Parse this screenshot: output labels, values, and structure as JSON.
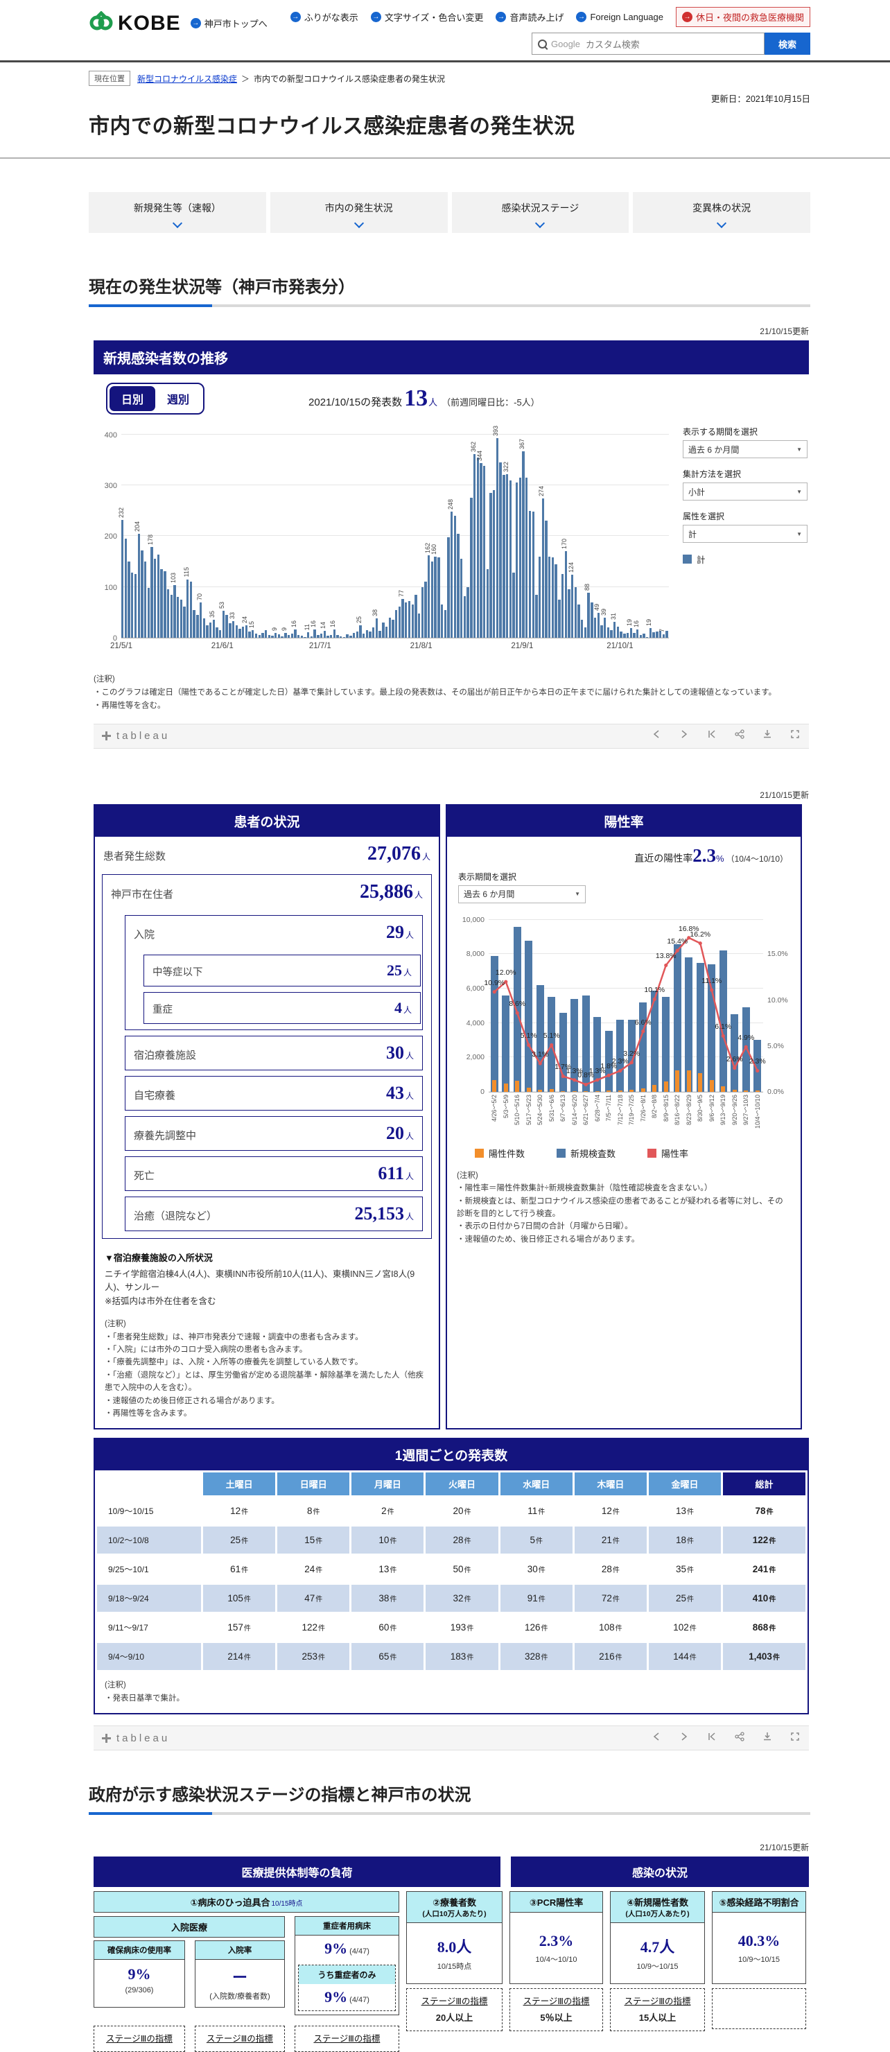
{
  "header": {
    "logo_text": "KOBE",
    "home_link": "神戸市トップへ",
    "nav": [
      "ふりがな表示",
      "文字サイズ・色合い変更",
      "音声読み上げ",
      "Foreign Language"
    ],
    "emergency": "休日・夜間の救急医療機関",
    "search": {
      "engine": "Google",
      "placeholder": "カスタム検索",
      "button": "検索"
    }
  },
  "breadcrumb": {
    "tag": "現在位置",
    "link": "新型コロナウイルス感染症",
    "sep": "＞",
    "current": "市内での新型コロナウイルス感染症患者の発生状況",
    "updated": "更新日：2021年10月15日"
  },
  "page_title": "市内での新型コロナウイルス感染症患者の発生状況",
  "tabs": [
    "新規発生等（速報）",
    "市内の発生状況",
    "感染状況ステージ",
    "変異株の状況"
  ],
  "section1_heading": "現在の発生状況等（神戸市発表分）",
  "dash1": {
    "updated": "21/10/15更新",
    "banner": "新規感染者数の推移",
    "toggle_daily": "日別",
    "toggle_weekly": "週別",
    "announce_prefix": "2021/10/15の発表数",
    "announce_value": "13",
    "announce_unit": "人",
    "announce_diff": "（前週同曜日比：-5人）",
    "controls": [
      {
        "label": "表示する期間を選択",
        "value": "過去 6 か月間"
      },
      {
        "label": "集計方法を選択",
        "value": "小計"
      },
      {
        "label": "属性を選択",
        "value": "計"
      }
    ],
    "legend": "計",
    "note_label": "(注釈)",
    "notes": [
      "・このグラフは確定日（陽性であることが確定した日）基準で集計しています。最上段の発表数は、その届出が前日正午から本日の正午までに届けられた集計としての速報値となっています。",
      "・再陽性等を含む。"
    ]
  },
  "patient": {
    "updated": "21/10/15更新",
    "header": "患者の状況",
    "total": {
      "label": "患者発生総数",
      "value": "27,076",
      "unit": "人"
    },
    "resident": {
      "label": "神戸市在住者",
      "value": "25,886",
      "unit": "人"
    },
    "hospital": {
      "label": "入院",
      "value": "29",
      "unit": "人"
    },
    "moderate": {
      "label": "中等症以下",
      "value": "25",
      "unit": "人"
    },
    "severe": {
      "label": "重症",
      "value": "4",
      "unit": "人"
    },
    "lodging": {
      "label": "宿泊療養施設",
      "value": "30",
      "unit": "人"
    },
    "home": {
      "label": "自宅療養",
      "value": "43",
      "unit": "人"
    },
    "adjusting": {
      "label": "療養先調整中",
      "value": "20",
      "unit": "人"
    },
    "death": {
      "label": "死亡",
      "value": "611",
      "unit": "人"
    },
    "recovered": {
      "label": "治癒（退院など）",
      "value": "25,153",
      "unit": "人"
    },
    "facility_title": "▼宿泊療養施設の入所状況",
    "facility_line1": "ニチイ学館宿泊棟4人(4人)、東横INN市役所前10人(11人)、東横INN三ノ宮Ⅰ8人(9人)、サンルー",
    "facility_line2": "※括弧内は市外在住者を含む",
    "note_label": "(注釈)",
    "notes": [
      "・「患者発生総数」は、神戸市発表分で速報・調査中の患者も含みます。",
      "・「入院」には市外のコロナ受入病院の患者も含みます。",
      "・「療養先調整中」は、入院・入所等の療養先を調整している人数です。",
      "・「治癒（退院など）」とは、厚生労働省が定める退院基準・解除基準を満たした人（他疾患で入院中の人を含む）。",
      "・速報値のため後日修正される場合があります。",
      "・再陽性等を含みます。"
    ]
  },
  "rate": {
    "header": "陽性率",
    "recent_prefix": "直近の陽性率",
    "recent_value": "2.3",
    "recent_unit": "%",
    "recent_period": "（10/4～10/10）",
    "control_label": "表示期間を選択",
    "control_value": "過去 6 か月間",
    "legend_positive": "陽性件数",
    "legend_tests": "新規検査数",
    "legend_rate": "陽性率",
    "note_label": "(注釈)",
    "notes": [
      "・陽性率＝陽性件数集計÷新規検査数集計（陰性確認検査を含まない。）",
      "・新規検査とは、新型コロナウイルス感染症の患者であることが疑われる者等に対し、その診断を目的として行う検査。",
      "・表示の日付から7日間の合計（月曜から日曜）。",
      "・速報値のため、後日修正される場合があります。"
    ]
  },
  "weekly_table": {
    "title": "1週間ごとの発表数",
    "col_headers": [
      "土曜日",
      "日曜日",
      "月曜日",
      "火曜日",
      "水曜日",
      "木曜日",
      "金曜日",
      "総計"
    ],
    "unit": "件",
    "rows": [
      {
        "label": "10/9～10/15",
        "cells": [
          "12",
          "8",
          "2",
          "20",
          "11",
          "12",
          "13"
        ],
        "total": "78"
      },
      {
        "label": "10/2～10/8",
        "cells": [
          "25",
          "15",
          "10",
          "28",
          "5",
          "21",
          "18"
        ],
        "total": "122"
      },
      {
        "label": "9/25～10/1",
        "cells": [
          "61",
          "24",
          "13",
          "50",
          "30",
          "28",
          "35"
        ],
        "total": "241"
      },
      {
        "label": "9/18～9/24",
        "cells": [
          "105",
          "47",
          "38",
          "32",
          "91",
          "72",
          "25"
        ],
        "total": "410"
      },
      {
        "label": "9/11～9/17",
        "cells": [
          "157",
          "122",
          "60",
          "193",
          "126",
          "108",
          "102"
        ],
        "total": "868"
      },
      {
        "label": "9/4～9/10",
        "cells": [
          "214",
          "253",
          "65",
          "183",
          "328",
          "216",
          "144"
        ],
        "total": "1,403"
      }
    ],
    "note_label": "(注釈)",
    "note": "・発表日基準で集計。"
  },
  "section2_heading": "政府が示す感染状況ステージの指標と神戸市の状況",
  "stage": {
    "updated": "21/10/15更新",
    "banner_left": "医療提供体制等の負荷",
    "banner_right": "感染の状況",
    "col1": {
      "title": "①病床のひっ迫具合",
      "asof": "10/15時点",
      "nyuin": "入院医療",
      "a": {
        "label": "確保病床の使用率",
        "value": "9%",
        "detail": "(29/306)",
        "stage": "ステージⅢの指標"
      },
      "b": {
        "label": "入院率",
        "value": "ー",
        "detail": "(入院数/療養者数)",
        "stage": "ステージⅢの指標"
      },
      "c": {
        "label": "重症者用病床",
        "value": "9%",
        "detail": "(4/47)",
        "sub": "うち重症者のみ",
        "sub_value": "9%",
        "sub_detail": "(4/47)",
        "stage": "ステージⅢの指標"
      }
    },
    "col2": {
      "title": "②療養者数",
      "sub": "(人口10万人あたり)",
      "value": "8.0人",
      "period": "10/15時点",
      "stage": "ステージⅢの指標",
      "threshold": "20人以上"
    },
    "col3": {
      "title": "③PCR陽性率",
      "value": "2.3%",
      "period": "10/4～10/10",
      "stage": "ステージⅢの指標",
      "threshold": "5％以上"
    },
    "col4": {
      "title": "④新規陽性者数",
      "sub": "(人口10万人あたり)",
      "value": "4.7人",
      "period": "10/9～10/15",
      "stage": "ステージⅢの指標",
      "threshold": "15人以上"
    },
    "col5": {
      "title": "⑤感染経路不明割合",
      "value": "40.3%",
      "period": "10/9～10/15"
    }
  },
  "toolbar": {
    "brand": "tableau"
  },
  "chart_data": [
    {
      "type": "bar",
      "title": "新規感染者数の推移（日別）",
      "ylabel": "新規感染者数",
      "ylim": [
        0,
        420
      ],
      "yticks": [
        0,
        100,
        200,
        300,
        400
      ],
      "series_name": "計",
      "bar_color": "#4e79a7",
      "x_start": "2021/5/1",
      "x_end": "2021/10/15",
      "month_ticks": [
        {
          "index": 0,
          "label": "21/5/1"
        },
        {
          "index": 31,
          "label": "21/6/1"
        },
        {
          "index": 61,
          "label": "21/7/1"
        },
        {
          "index": 92,
          "label": "21/8/1"
        },
        {
          "index": 123,
          "label": "21/9/1"
        },
        {
          "index": 153,
          "label": "21/10/1"
        }
      ],
      "values": [
        232,
        195,
        150,
        128,
        125,
        204,
        172,
        150,
        98,
        178,
        155,
        163,
        135,
        131,
        95,
        85,
        103,
        80,
        75,
        62,
        115,
        110,
        55,
        45,
        70,
        38,
        25,
        30,
        35,
        20,
        15,
        53,
        45,
        28,
        33,
        25,
        18,
        22,
        24,
        12,
        15,
        8,
        5,
        10,
        15,
        6,
        4,
        9,
        7,
        3,
        9,
        5,
        8,
        16,
        6,
        4,
        2,
        11,
        3,
        16,
        5,
        8,
        14,
        4,
        6,
        16,
        5,
        3,
        2,
        7,
        4,
        10,
        12,
        25,
        8,
        15,
        12,
        20,
        38,
        14,
        30,
        22,
        40,
        35,
        55,
        62,
        77,
        70,
        72,
        65,
        85,
        48,
        100,
        110,
        162,
        150,
        160,
        158,
        65,
        55,
        198,
        248,
        240,
        205,
        155,
        82,
        100,
        275,
        362,
        355,
        344,
        338,
        135,
        285,
        290,
        393,
        345,
        320,
        322,
        310,
        128,
        305,
        315,
        367,
        315,
        250,
        248,
        85,
        160,
        274,
        230,
        160,
        158,
        145,
        75,
        125,
        170,
        95,
        124,
        100,
        65,
        35,
        20,
        88,
        70,
        40,
        49,
        25,
        39,
        20,
        15,
        31,
        22,
        12,
        8,
        10,
        19,
        9,
        16,
        5,
        8,
        2,
        19,
        11,
        12,
        13,
        7,
        13
      ],
      "label_indices": [
        0,
        5,
        9,
        16,
        20,
        24,
        28,
        31,
        34,
        38,
        40,
        47,
        50,
        53,
        57,
        59,
        62,
        65,
        73,
        78,
        86,
        94,
        96,
        101,
        108,
        110,
        115,
        118,
        123,
        129,
        136,
        138,
        143,
        146,
        148,
        151,
        156,
        158,
        162,
        166
      ]
    },
    {
      "type": "bar+line",
      "title": "陽性率（週別）",
      "categories": [
        "4/26～5/2",
        "5/3～5/9",
        "5/10～5/16",
        "5/17～5/23",
        "5/24～5/30",
        "5/31～6/6",
        "6/7～6/13",
        "6/14～6/20",
        "6/21～6/27",
        "6/28～7/4",
        "7/5～7/11",
        "7/12～7/18",
        "7/19～7/25",
        "7/26～8/1",
        "8/2～8/8",
        "8/9～8/15",
        "8/16～8/22",
        "8/23～8/29",
        "8/30～9/5",
        "9/6～9/12",
        "9/13～9/19",
        "9/20～9/26",
        "9/27～10/3",
        "10/4～10/10"
      ],
      "series": [
        {
          "name": "陽性件数",
          "color": "#f28e2b",
          "values": [
            700,
            500,
            650,
            250,
            120,
            150,
            50,
            40,
            30,
            50,
            60,
            90,
            130,
            180,
            400,
            600,
            1250,
            1250,
            1100,
            700,
            300,
            100,
            80,
            60
          ]
        },
        {
          "name": "新規検査数",
          "color": "#4e79a7",
          "values": [
            7900,
            5600,
            9600,
            8800,
            6200,
            5500,
            4600,
            5400,
            5600,
            4350,
            3550,
            4200,
            4200,
            5200,
            5900,
            5500,
            8600,
            7800,
            7500,
            7400,
            8200,
            4500,
            4900,
            3000
          ]
        },
        {
          "name": "陽性率",
          "color": "#e15759",
          "axis": "right",
          "values": [
            10.9,
            12.0,
            8.6,
            5.1,
            3.1,
            5.1,
            1.7,
            1.3,
            0.8,
            1.3,
            1.8,
            2.3,
            3.2,
            6.6,
            10.1,
            13.8,
            15.4,
            16.8,
            16.2,
            11.1,
            6.1,
            2.6,
            4.9,
            2.3
          ]
        }
      ],
      "left_axis": {
        "max": 10400,
        "ticks": [
          0,
          2000,
          4000,
          6000,
          8000,
          10000
        ],
        "tick_labels": [
          "0",
          "2,000",
          "4,000",
          "6,000",
          "8,000",
          "10,000"
        ]
      },
      "right_axis": {
        "max": 19.5,
        "tick_values": [
          0,
          5,
          10,
          15
        ],
        "ticks": [
          "0.0%",
          "5.0%",
          "10.0%",
          "15.0%"
        ]
      }
    }
  ]
}
